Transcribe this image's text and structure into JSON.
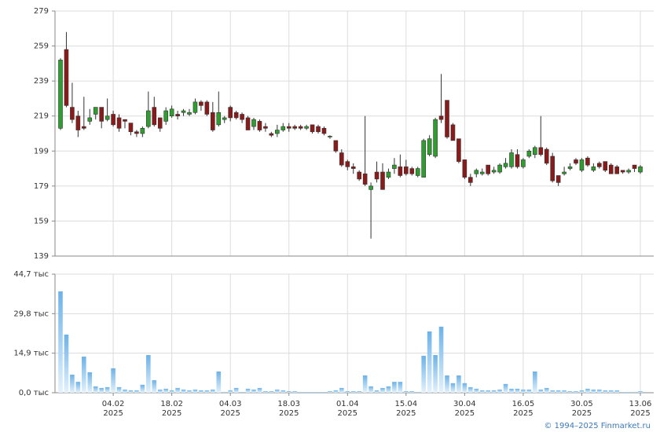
{
  "chart_data": [
    {
      "type": "candlestick",
      "up_color": "#2e9e2e",
      "down_color": "#8b1a1a",
      "open": [
        212,
        257,
        224,
        219,
        213,
        216,
        220,
        224,
        217,
        220,
        218,
        217,
        215,
        210,
        209,
        213,
        224,
        218,
        216,
        219,
        220,
        221,
        220,
        221,
        227,
        227,
        221,
        214,
        217,
        224,
        221,
        220,
        218,
        213,
        216,
        213,
        209,
        209,
        211,
        213,
        213,
        213,
        212,
        214,
        213,
        212,
        207,
        205,
        198,
        193,
        190,
        187,
        186,
        177,
        187,
        187,
        184,
        189,
        190,
        190,
        189,
        185,
        184,
        197,
        196,
        219,
        228,
        214,
        206,
        194,
        184,
        186,
        186,
        191,
        187,
        187,
        190,
        190,
        197,
        190,
        196,
        197,
        201,
        200,
        196,
        185,
        186,
        189,
        194,
        188,
        195,
        188,
        192,
        193,
        191,
        190,
        188,
        187,
        191,
        187
      ],
      "high": [
        252,
        267,
        238,
        222,
        230,
        223,
        224,
        224,
        229,
        222,
        220,
        217,
        215,
        211,
        213,
        233,
        230,
        218,
        224,
        225,
        222,
        223,
        223,
        229,
        228,
        228,
        227,
        233,
        219,
        225,
        222,
        221,
        219,
        218,
        217,
        215,
        210,
        214,
        215,
        215,
        214,
        214,
        214,
        214,
        214,
        213,
        208,
        205,
        200,
        194,
        192,
        188,
        219,
        181,
        193,
        192,
        189,
        195,
        197,
        194,
        190,
        190,
        206,
        208,
        218,
        243,
        228,
        215,
        206,
        194,
        186,
        189,
        189,
        191,
        190,
        192,
        195,
        200,
        200,
        195,
        200,
        202,
        219,
        201,
        198,
        185,
        190,
        192,
        195,
        195,
        196,
        192,
        193,
        193,
        192,
        191,
        188,
        189,
        191,
        191
      ],
      "low": [
        211,
        224,
        215,
        207,
        211,
        214,
        217,
        212,
        216,
        213,
        210,
        212,
        208,
        207,
        207,
        212,
        213,
        210,
        214,
        218,
        217,
        219,
        219,
        220,
        222,
        219,
        210,
        213,
        215,
        216,
        217,
        215,
        211,
        211,
        210,
        210,
        207,
        207,
        210,
        210,
        211,
        211,
        211,
        209,
        209,
        208,
        206,
        198,
        190,
        188,
        186,
        182,
        179,
        149,
        181,
        177,
        183,
        186,
        184,
        185,
        185,
        184,
        184,
        196,
        195,
        215,
        206,
        205,
        192,
        183,
        179,
        184,
        185,
        185,
        186,
        186,
        189,
        189,
        189,
        189,
        195,
        195,
        196,
        191,
        181,
        179,
        185,
        188,
        191,
        187,
        190,
        187,
        189,
        187,
        186,
        186,
        186,
        186,
        187,
        186
      ],
      "close": [
        251,
        225,
        217,
        211,
        212,
        218,
        224,
        216,
        219,
        214,
        212,
        216,
        210,
        209,
        212,
        222,
        214,
        212,
        222,
        223,
        219,
        222,
        221,
        227,
        225,
        220,
        211,
        221,
        218,
        218,
        218,
        217,
        211,
        217,
        211,
        212,
        208,
        211,
        213,
        212,
        212,
        212,
        213,
        210,
        210,
        209,
        207.5,
        199,
        191,
        190,
        189,
        183,
        180,
        179,
        183,
        177,
        187,
        191,
        185,
        186,
        186,
        189,
        205,
        206,
        217,
        217,
        207,
        205,
        193,
        184,
        181,
        188,
        187,
        186,
        188,
        191,
        192,
        198,
        190,
        194,
        199,
        201,
        197,
        192,
        182,
        181,
        187,
        190,
        192,
        194,
        191,
        190,
        190,
        188,
        186,
        186,
        187,
        188,
        189,
        190
      ],
      "ylim": [
        139,
        279
      ],
      "yticks": [
        139,
        159,
        179,
        199,
        219,
        239,
        259,
        279
      ],
      "grid": true
    },
    {
      "type": "bar",
      "color": "#7bbbea",
      "categories": [
        null,
        null,
        null,
        null,
        null,
        null,
        null,
        null,
        null,
        "04.02\n2025",
        null,
        null,
        null,
        null,
        null,
        null,
        null,
        null,
        null,
        "18.02\n2025",
        null,
        null,
        null,
        null,
        null,
        null,
        null,
        null,
        null,
        "04.03\n2025",
        null,
        null,
        null,
        null,
        null,
        null,
        null,
        null,
        null,
        "18.03\n2025",
        null,
        null,
        null,
        null,
        null,
        null,
        null,
        null,
        null,
        "01.04\n2025",
        null,
        null,
        null,
        null,
        null,
        null,
        null,
        null,
        null,
        "15.04\n2025",
        null,
        null,
        null,
        null,
        null,
        null,
        null,
        null,
        null,
        "30.04\n2025",
        null,
        null,
        null,
        null,
        null,
        null,
        null,
        null,
        null,
        "16.05\n2025",
        null,
        null,
        null,
        null,
        null,
        null,
        null,
        null,
        null,
        "30.05\n2025",
        null,
        null,
        null,
        null,
        null,
        null,
        null,
        null,
        null,
        "13.06\n2025"
      ],
      "values": [
        38.2,
        21.9,
        6.8,
        4.1,
        13.6,
        7.7,
        2.4,
        1.8,
        2.1,
        9.2,
        2.1,
        1.2,
        0.9,
        0.9,
        3.0,
        14.2,
        4.7,
        1.2,
        1.5,
        0.9,
        1.8,
        1.2,
        0.9,
        1.2,
        0.9,
        0.9,
        1.2,
        8.0,
        0.3,
        0.9,
        1.8,
        0.3,
        1.5,
        1.2,
        1.8,
        0.6,
        0.6,
        1.2,
        0.9,
        0.6,
        0.6,
        0.3,
        0.3,
        0.3,
        0.3,
        0.3,
        0.6,
        0.9,
        1.8,
        0.6,
        0.6,
        0.6,
        6.5,
        2.4,
        0.9,
        1.8,
        2.4,
        4.1,
        4.1,
        0.6,
        0.6,
        0.3,
        13.9,
        23.1,
        14.2,
        24.9,
        6.5,
        3.6,
        6.5,
        3.6,
        2.1,
        1.5,
        0.9,
        0.9,
        0.9,
        1.2,
        3.3,
        1.5,
        1.5,
        1.2,
        1.2,
        8.0,
        1.2,
        1.8,
        0.9,
        0.9,
        0.9,
        0.6,
        0.6,
        0.9,
        1.5,
        1.2,
        1.2,
        0.9,
        0.9,
        0.9,
        0.3,
        0.3,
        0.3,
        0.6
      ],
      "ylim": [
        0,
        44.7
      ],
      "yticks": [
        {
          "value": 0,
          "label": "0,0 тыс"
        },
        {
          "value": 14.9,
          "label": "14,9 тыс"
        },
        {
          "value": 29.8,
          "label": "29,8 тыс"
        },
        {
          "value": 44.7,
          "label": "44,7 тыс"
        }
      ],
      "grid": true
    }
  ],
  "footer": "© 1994–2025 Finmarket.ru"
}
